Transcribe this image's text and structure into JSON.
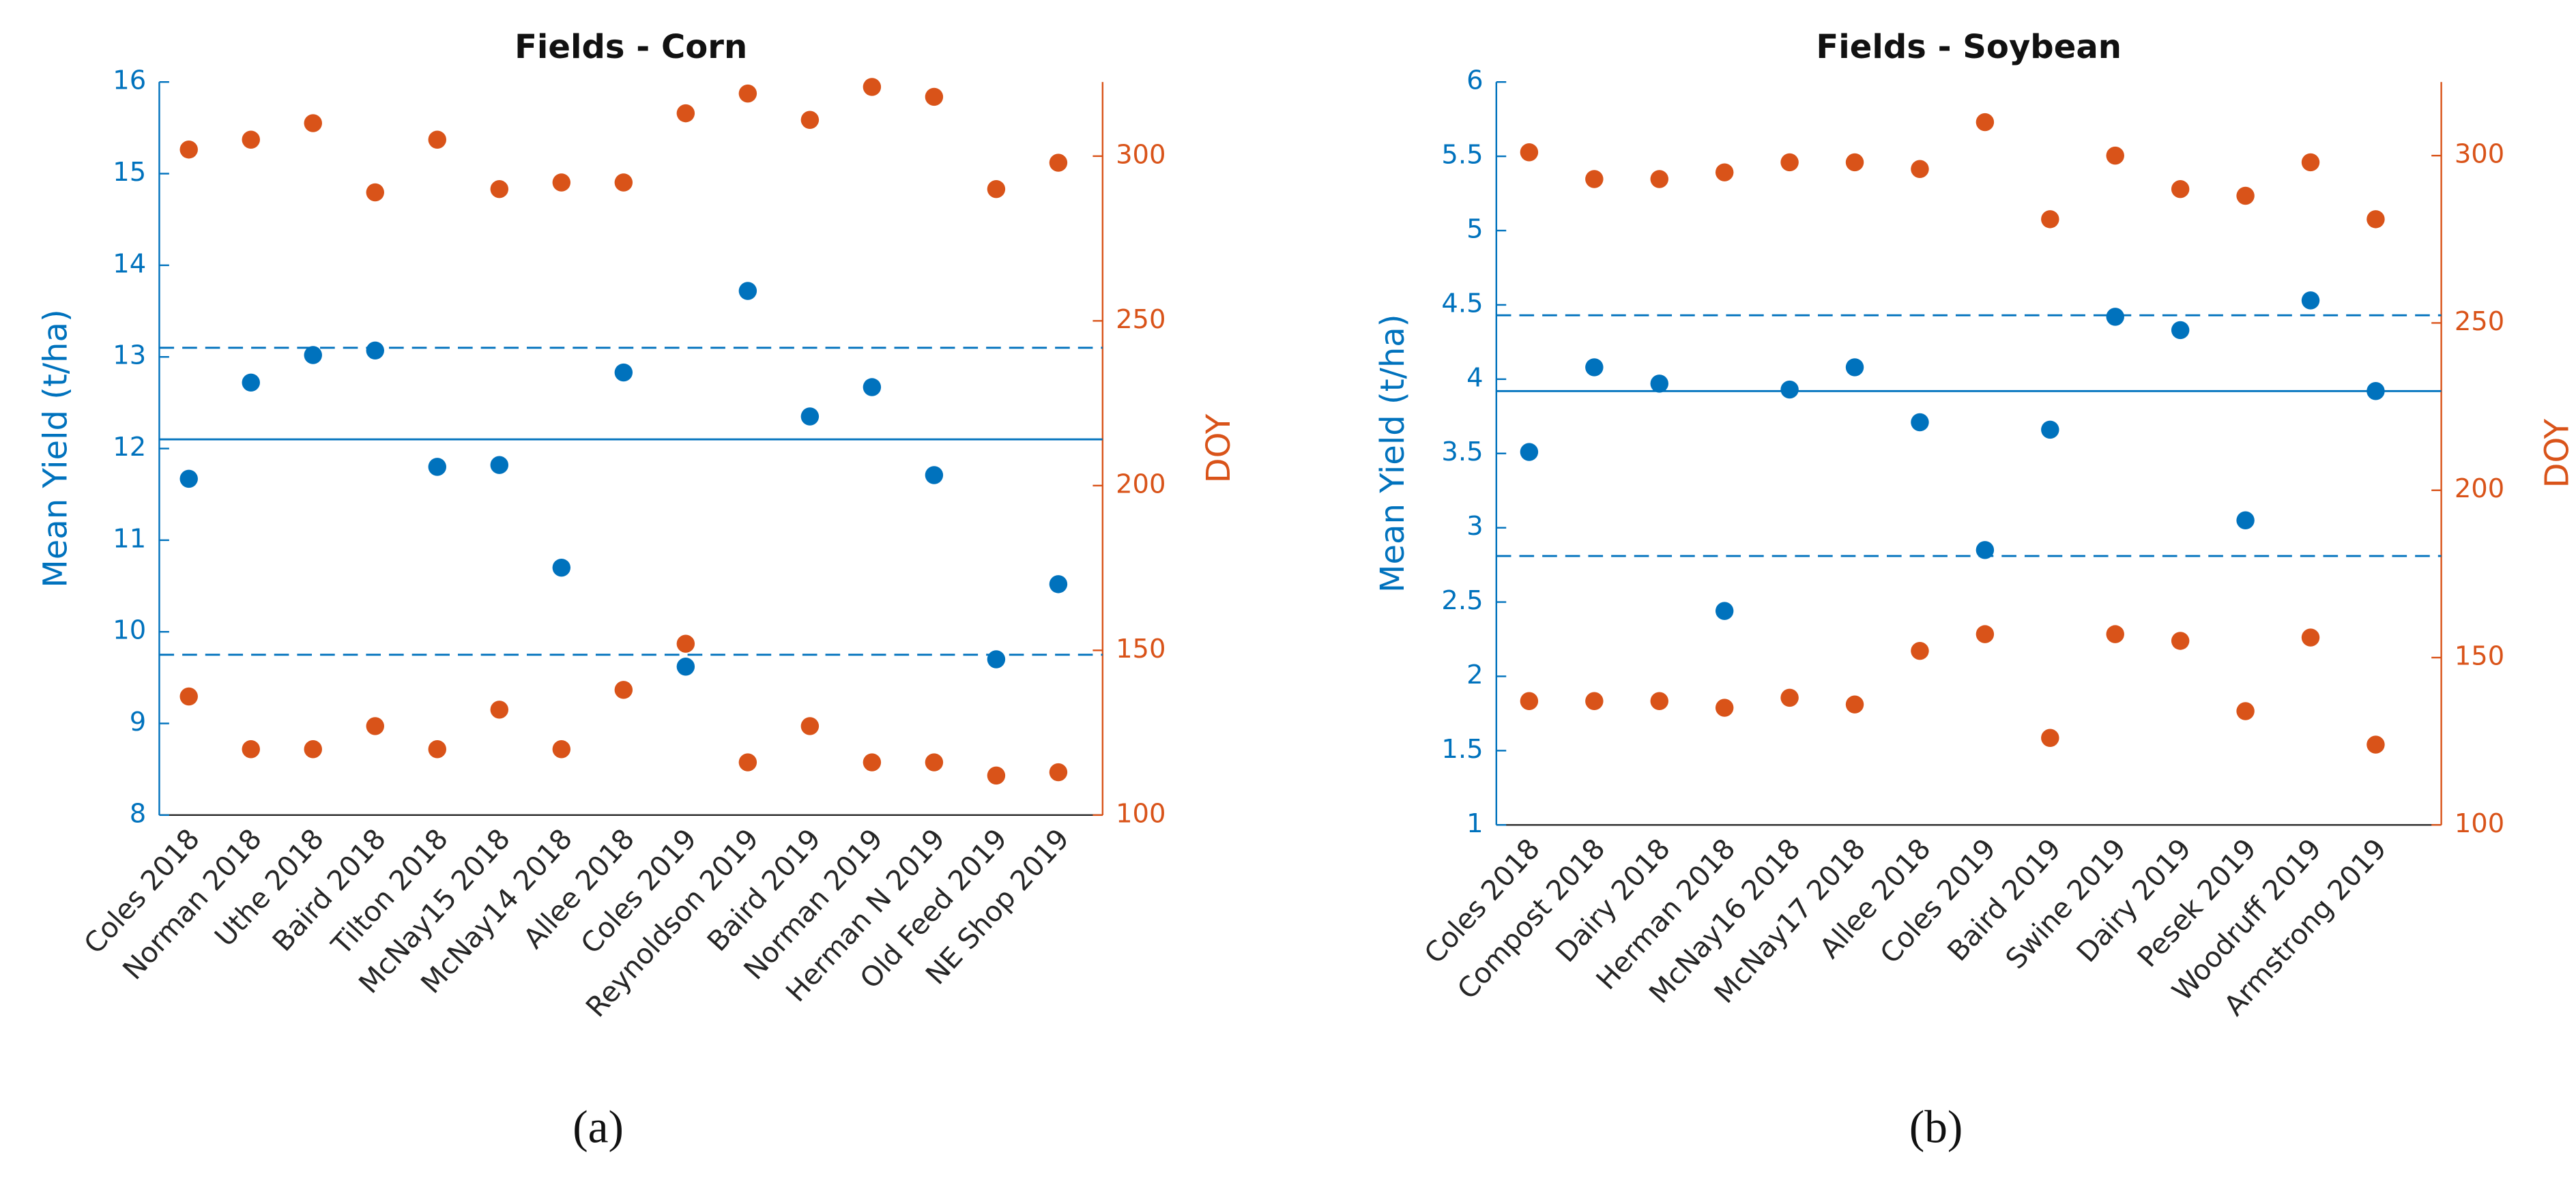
{
  "chart_data": [
    {
      "type": "scatter",
      "title": "Fields - Corn",
      "caption": "(a)",
      "categories": [
        "Coles 2018",
        "Norman 2018",
        "Uthe 2018",
        "Baird 2018",
        "Tilton 2018",
        "McNay15 2018",
        "McNay14 2018",
        "Allee 2018",
        "Coles 2019",
        "Reynoldson 2019",
        "Baird 2019",
        "Norman 2019",
        "Herman N 2019",
        "Old Feed 2019",
        "NE Shop 2019"
      ],
      "ylabel": "Mean Yield (t/ha)",
      "y2label": "DOY",
      "ylim": [
        8,
        16
      ],
      "yticks": [
        8,
        9,
        10,
        11,
        12,
        13,
        14,
        15,
        16
      ],
      "y2lim": [
        100,
        322.5
      ],
      "y2ticks": [
        100,
        150,
        200,
        250,
        300
      ],
      "series": [
        {
          "color": "#0072bd",
          "values": [
            11.67,
            12.72,
            13.02,
            13.07,
            11.8,
            11.82,
            10.7,
            12.83,
            9.62,
            13.72,
            12.35,
            12.67,
            11.71,
            9.7,
            10.52
          ]
        },
        {
          "color": "#d95319",
          "axis": "y2",
          "values": [
            302,
            305,
            310,
            289,
            305,
            290,
            292,
            292,
            313,
            319,
            311,
            321,
            318,
            290,
            298
          ]
        },
        {
          "color": "#d95319",
          "axis": "y2",
          "values": [
            136,
            120,
            120,
            127,
            120,
            132,
            120,
            138,
            152,
            116,
            127,
            116,
            116,
            112,
            113
          ]
        }
      ],
      "reference_lines": [
        {
          "value": 12.1,
          "style": "solid"
        },
        {
          "value": 13.1,
          "style": "dashed"
        },
        {
          "value": 9.75,
          "style": "dashed"
        }
      ]
    },
    {
      "type": "scatter",
      "title": "Fields - Soybean",
      "caption": "(b)",
      "categories": [
        "Coles 2018",
        "Compost 2018",
        "Dairy 2018",
        "Herman 2018",
        "McNay16 2018",
        "McNay17 2018",
        "Allee 2018",
        "Coles 2019",
        "Baird 2019",
        "Swine 2019",
        "Dairy 2019",
        "Pesek 2019",
        "Woodruff 2019",
        "Armstrong 2019"
      ],
      "ylabel": "Mean Yield (t/ha)",
      "y2label": "DOY",
      "ylim": [
        1,
        6
      ],
      "yticks": [
        1,
        1.5,
        2,
        2.5,
        3,
        3.5,
        4,
        4.5,
        5,
        5.5,
        6
      ],
      "y2lim": [
        100,
        322
      ],
      "y2ticks": [
        100,
        150,
        200,
        250,
        300
      ],
      "series": [
        {
          "color": "#0072bd",
          "values": [
            3.51,
            4.08,
            3.97,
            2.44,
            3.93,
            4.08,
            3.71,
            2.85,
            3.66,
            4.42,
            4.33,
            3.05,
            4.53,
            3.92
          ]
        },
        {
          "color": "#d95319",
          "axis": "y2",
          "values": [
            301,
            293,
            293,
            295,
            298,
            298,
            296,
            310,
            281,
            300,
            290,
            288,
            298,
            281
          ]
        },
        {
          "color": "#d95319",
          "axis": "y2",
          "values": [
            137,
            137,
            137,
            135,
            138,
            136,
            152,
            157,
            126,
            157,
            155,
            134,
            156,
            124
          ]
        }
      ],
      "reference_lines": [
        {
          "value": 3.92,
          "style": "solid"
        },
        {
          "value": 4.43,
          "style": "dashed"
        },
        {
          "value": 2.81,
          "style": "dashed"
        }
      ]
    }
  ]
}
